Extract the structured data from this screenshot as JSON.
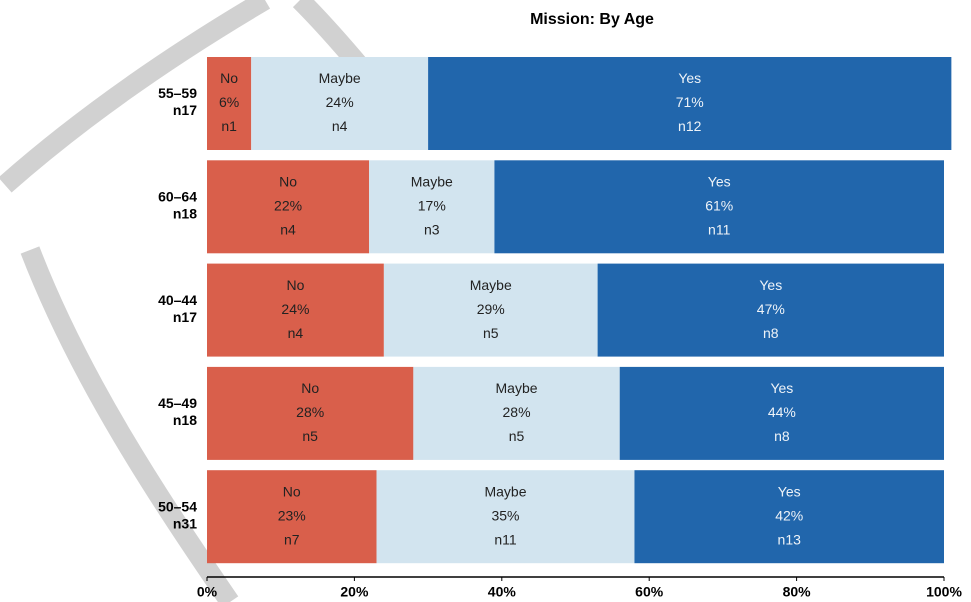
{
  "chart_data": {
    "type": "stacked-bar-horizontal",
    "title": "Mission: By Age",
    "categories": [
      "55–59",
      "60–64",
      "40–44",
      "45–49",
      "50–54"
    ],
    "category_counts": [
      "n17",
      "n18",
      "n17",
      "n18",
      "n31"
    ],
    "series": [
      {
        "name": "No",
        "color": "#d95f4b",
        "values": [
          6,
          22,
          24,
          28,
          23
        ],
        "value_labels": [
          "6%",
          "22%",
          "24%",
          "28%",
          "23%"
        ],
        "count_labels": [
          "n1",
          "n4",
          "n4",
          "n5",
          "n7"
        ]
      },
      {
        "name": "Maybe",
        "color": "#d2e4ef",
        "values": [
          24,
          17,
          29,
          28,
          35
        ],
        "value_labels": [
          "24%",
          "17%",
          "29%",
          "28%",
          "35%"
        ],
        "count_labels": [
          "n4",
          "n3",
          "n5",
          "n5",
          "n11"
        ]
      },
      {
        "name": "Yes",
        "color": "#2166ac",
        "values": [
          71,
          61,
          47,
          44,
          42
        ],
        "value_labels": [
          "71%",
          "61%",
          "47%",
          "44%",
          "42%"
        ],
        "count_labels": [
          "n12",
          "n11",
          "n8",
          "n8",
          "n13"
        ]
      }
    ],
    "xlim": [
      0,
      100
    ],
    "xticks": [
      {
        "value": 0,
        "label": "0%"
      },
      {
        "value": 20,
        "label": "20%"
      },
      {
        "value": 40,
        "label": "40%"
      },
      {
        "value": 60,
        "label": "60%"
      },
      {
        "value": 80,
        "label": "80%"
      },
      {
        "value": 100,
        "label": "100%"
      }
    ]
  }
}
